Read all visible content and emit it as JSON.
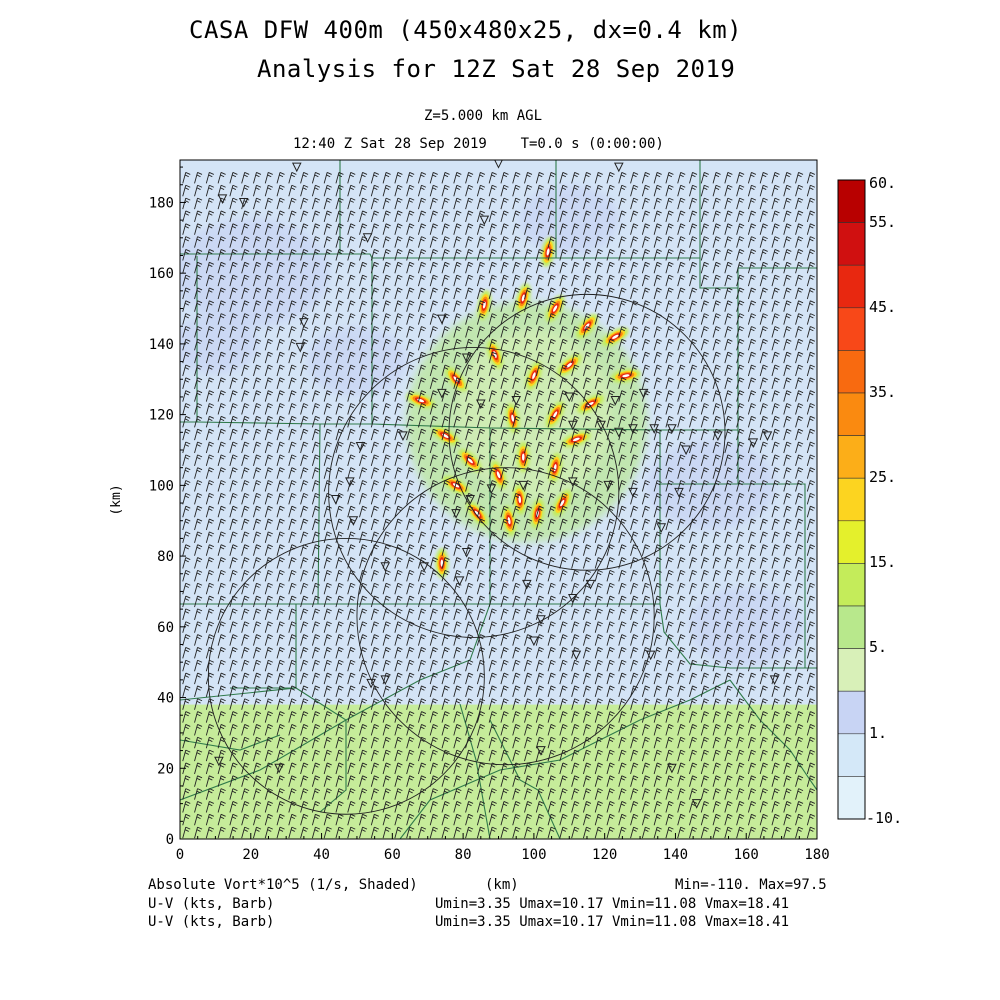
{
  "header": {
    "title_line1": "CASA DFW 400m (450x480x25, dx=0.4 km)",
    "title_line2": "Analysis for 12Z Sat 28 Sep 2019",
    "level": "Z=5.000 km AGL",
    "time": "12:40 Z Sat 28 Sep 2019    T=0.0 s (0:00:00)"
  },
  "footer": {
    "field_label": "Absolute Vort*10^5 (1/s, Shaded)",
    "x_unit": "(km)",
    "minmax": "Min=-110. Max=97.5",
    "wind1_label": "U-V (kts, Barb)",
    "wind1_stats": "Umin=3.35 Umax=10.17 Vmin=11.08 Vmax=18.41",
    "wind2_label": "U-V (kts, Barb)",
    "wind2_stats": "Umin=3.35 Umax=10.17 Vmin=11.08 Vmax=18.41"
  },
  "colors": {
    "background_lowvort": "#d4e4f6",
    "background_south": "#c6ec9a",
    "county_lines": "#2f7a4a",
    "barbs": "#222222"
  },
  "chart_data": {
    "type": "heatmap",
    "xlabel": "(km)",
    "ylabel": "(km)",
    "xlim": [
      0,
      180
    ],
    "ylim": [
      0,
      192
    ],
    "xticks": [
      0,
      20,
      40,
      60,
      80,
      100,
      120,
      140,
      160,
      180
    ],
    "yticks": [
      0,
      20,
      40,
      60,
      80,
      100,
      120,
      140,
      160,
      180
    ],
    "colorbar": {
      "labels": [
        "60.",
        "55.",
        "45.",
        "35.",
        "25.",
        "15.",
        "5.",
        "1.",
        "-10."
      ],
      "bins": [
        {
          "lo": 55,
          "hi": 60,
          "color": "#b80000"
        },
        {
          "lo": 50,
          "hi": 55,
          "color": "#d01010"
        },
        {
          "lo": 45,
          "hi": 50,
          "color": "#e82810"
        },
        {
          "lo": 40,
          "hi": 45,
          "color": "#f84818"
        },
        {
          "lo": 35,
          "hi": 40,
          "color": "#f86a10"
        },
        {
          "lo": 30,
          "hi": 35,
          "color": "#fa8a10"
        },
        {
          "lo": 25,
          "hi": 30,
          "color": "#fcae18"
        },
        {
          "lo": 20,
          "hi": 25,
          "color": "#fcd420"
        },
        {
          "lo": 15,
          "hi": 20,
          "color": "#e4f02c"
        },
        {
          "lo": 10,
          "hi": 15,
          "color": "#c4ec5a"
        },
        {
          "lo": 5,
          "hi": 10,
          "color": "#b8e88c"
        },
        {
          "lo": 1,
          "hi": 5,
          "color": "#d8f0b8"
        },
        {
          "lo": -2,
          "hi": 1,
          "color": "#c8d4f4"
        },
        {
          "lo": -6,
          "hi": -2,
          "color": "#d4e8f8"
        },
        {
          "lo": -10,
          "hi": -6,
          "color": "#e2f2fa"
        }
      ]
    },
    "range_rings_km": [
      {
        "x": 115,
        "y": 115,
        "r": 39
      },
      {
        "x": 83,
        "y": 98,
        "r": 41
      },
      {
        "x": 92,
        "y": 63,
        "r": 42
      },
      {
        "x": 47,
        "y": 46,
        "r": 39
      }
    ],
    "vortex_streaks_km": [
      {
        "x": 86,
        "y": 151,
        "a": 80
      },
      {
        "x": 97,
        "y": 153,
        "a": 75
      },
      {
        "x": 106,
        "y": 150,
        "a": 60
      },
      {
        "x": 115,
        "y": 145,
        "a": 50
      },
      {
        "x": 123,
        "y": 142,
        "a": 30
      },
      {
        "x": 126,
        "y": 131,
        "a": 10
      },
      {
        "x": 110,
        "y": 134,
        "a": 40
      },
      {
        "x": 100,
        "y": 131,
        "a": 70
      },
      {
        "x": 89,
        "y": 137,
        "a": 110
      },
      {
        "x": 78,
        "y": 130,
        "a": 130
      },
      {
        "x": 68,
        "y": 124,
        "a": 160
      },
      {
        "x": 75,
        "y": 114,
        "a": 150
      },
      {
        "x": 82,
        "y": 107,
        "a": 135
      },
      {
        "x": 78,
        "y": 100,
        "a": 150
      },
      {
        "x": 90,
        "y": 103,
        "a": 110
      },
      {
        "x": 97,
        "y": 108,
        "a": 90
      },
      {
        "x": 106,
        "y": 105,
        "a": 80
      },
      {
        "x": 112,
        "y": 113,
        "a": 20
      },
      {
        "x": 116,
        "y": 123,
        "a": 30
      },
      {
        "x": 106,
        "y": 120,
        "a": 60
      },
      {
        "x": 94,
        "y": 119,
        "a": 100
      },
      {
        "x": 84,
        "y": 92,
        "a": 130
      },
      {
        "x": 93,
        "y": 90,
        "a": 100
      },
      {
        "x": 101,
        "y": 92,
        "a": 80
      },
      {
        "x": 108,
        "y": 95,
        "a": 60
      },
      {
        "x": 96,
        "y": 96,
        "a": 95
      },
      {
        "x": 74,
        "y": 78,
        "a": 90
      },
      {
        "x": 104,
        "y": 166,
        "a": 80
      }
    ],
    "station_markers_km": [
      [
        18,
        180
      ],
      [
        12,
        181
      ],
      [
        33,
        190
      ],
      [
        90,
        191
      ],
      [
        124,
        190
      ],
      [
        53,
        170
      ],
      [
        86,
        175
      ],
      [
        35,
        146
      ],
      [
        34,
        139
      ],
      [
        74,
        147
      ],
      [
        81,
        136
      ],
      [
        74,
        126
      ],
      [
        85,
        123
      ],
      [
        95,
        124
      ],
      [
        110,
        125
      ],
      [
        123,
        124
      ],
      [
        131,
        126
      ],
      [
        111,
        117
      ],
      [
        119,
        117
      ],
      [
        124,
        115
      ],
      [
        128,
        116
      ],
      [
        134,
        116
      ],
      [
        139,
        116
      ],
      [
        63,
        114
      ],
      [
        51,
        111
      ],
      [
        48,
        101
      ],
      [
        44,
        96
      ],
      [
        78,
        92
      ],
      [
        82,
        96
      ],
      [
        88,
        99
      ],
      [
        97,
        100
      ],
      [
        111,
        101
      ],
      [
        121,
        100
      ],
      [
        128,
        98
      ],
      [
        141,
        98
      ],
      [
        143,
        110
      ],
      [
        152,
        114
      ],
      [
        162,
        112
      ],
      [
        166,
        114
      ],
      [
        136,
        88
      ],
      [
        81,
        81
      ],
      [
        58,
        77
      ],
      [
        69,
        77
      ],
      [
        79,
        73
      ],
      [
        98,
        72
      ],
      [
        116,
        72
      ],
      [
        111,
        68
      ],
      [
        102,
        62
      ],
      [
        112,
        52
      ],
      [
        133,
        52
      ],
      [
        168,
        45
      ],
      [
        11,
        22
      ],
      [
        28,
        20
      ],
      [
        102,
        25
      ],
      [
        139,
        20
      ],
      [
        146,
        10
      ],
      [
        54,
        44
      ],
      [
        58,
        45
      ],
      [
        49,
        90
      ],
      [
        100,
        56
      ]
    ]
  }
}
